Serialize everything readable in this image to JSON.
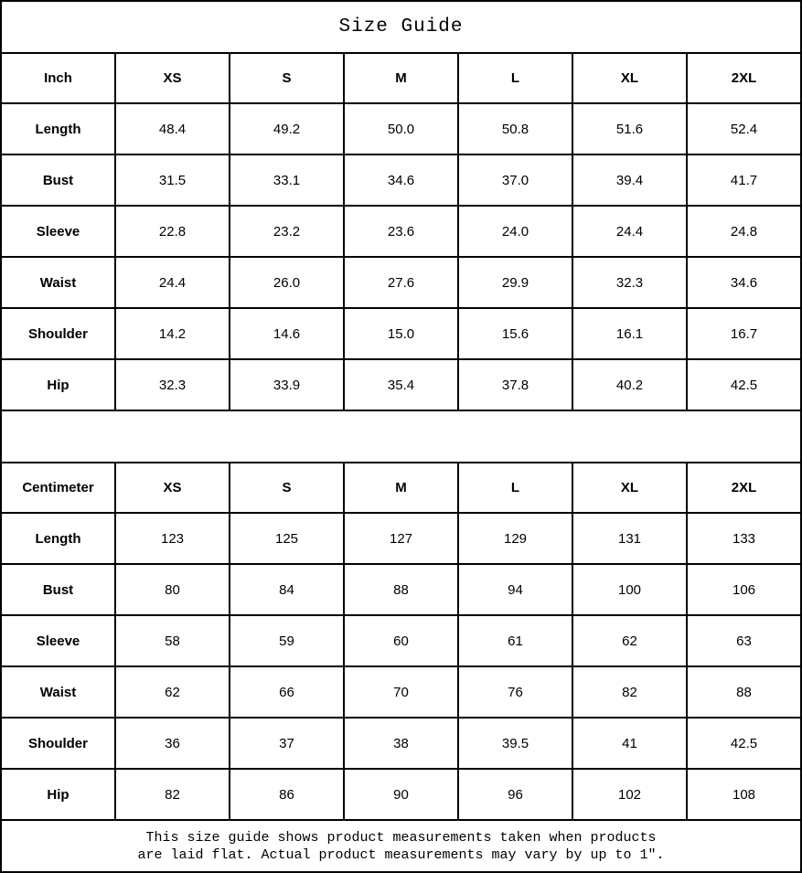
{
  "title": "Size Guide",
  "tables": [
    {
      "unit": "Inch",
      "sizes": [
        "XS",
        "S",
        "M",
        "L",
        "XL",
        "2XL"
      ],
      "rows": [
        {
          "label": "Length",
          "values": [
            "48.4",
            "49.2",
            "50.0",
            "50.8",
            "51.6",
            "52.4"
          ]
        },
        {
          "label": "Bust",
          "values": [
            "31.5",
            "33.1",
            "34.6",
            "37.0",
            "39.4",
            "41.7"
          ]
        },
        {
          "label": "Sleeve",
          "values": [
            "22.8",
            "23.2",
            "23.6",
            "24.0",
            "24.4",
            "24.8"
          ]
        },
        {
          "label": "Waist",
          "values": [
            "24.4",
            "26.0",
            "27.6",
            "29.9",
            "32.3",
            "34.6"
          ]
        },
        {
          "label": "Shoulder",
          "values": [
            "14.2",
            "14.6",
            "15.0",
            "15.6",
            "16.1",
            "16.7"
          ]
        },
        {
          "label": "Hip",
          "values": [
            "32.3",
            "33.9",
            "35.4",
            "37.8",
            "40.2",
            "42.5"
          ]
        }
      ]
    },
    {
      "unit": "Centimeter",
      "sizes": [
        "XS",
        "S",
        "M",
        "L",
        "XL",
        "2XL"
      ],
      "rows": [
        {
          "label": "Length",
          "values": [
            "123",
            "125",
            "127",
            "129",
            "131",
            "133"
          ]
        },
        {
          "label": "Bust",
          "values": [
            "80",
            "84",
            "88",
            "94",
            "100",
            "106"
          ]
        },
        {
          "label": "Sleeve",
          "values": [
            "58",
            "59",
            "60",
            "61",
            "62",
            "63"
          ]
        },
        {
          "label": "Waist",
          "values": [
            "62",
            "66",
            "70",
            "76",
            "82",
            "88"
          ]
        },
        {
          "label": "Shoulder",
          "values": [
            "36",
            "37",
            "38",
            "39.5",
            "41",
            "42.5"
          ]
        },
        {
          "label": "Hip",
          "values": [
            "82",
            "86",
            "90",
            "96",
            "102",
            "108"
          ]
        }
      ]
    }
  ],
  "footer": {
    "line1": "This size guide shows product measurements taken when products",
    "line2": "are laid flat. Actual product measurements may vary by up to 1″."
  },
  "colors": {
    "border": "#000000",
    "background": "#ffffff",
    "text": "#000000"
  }
}
